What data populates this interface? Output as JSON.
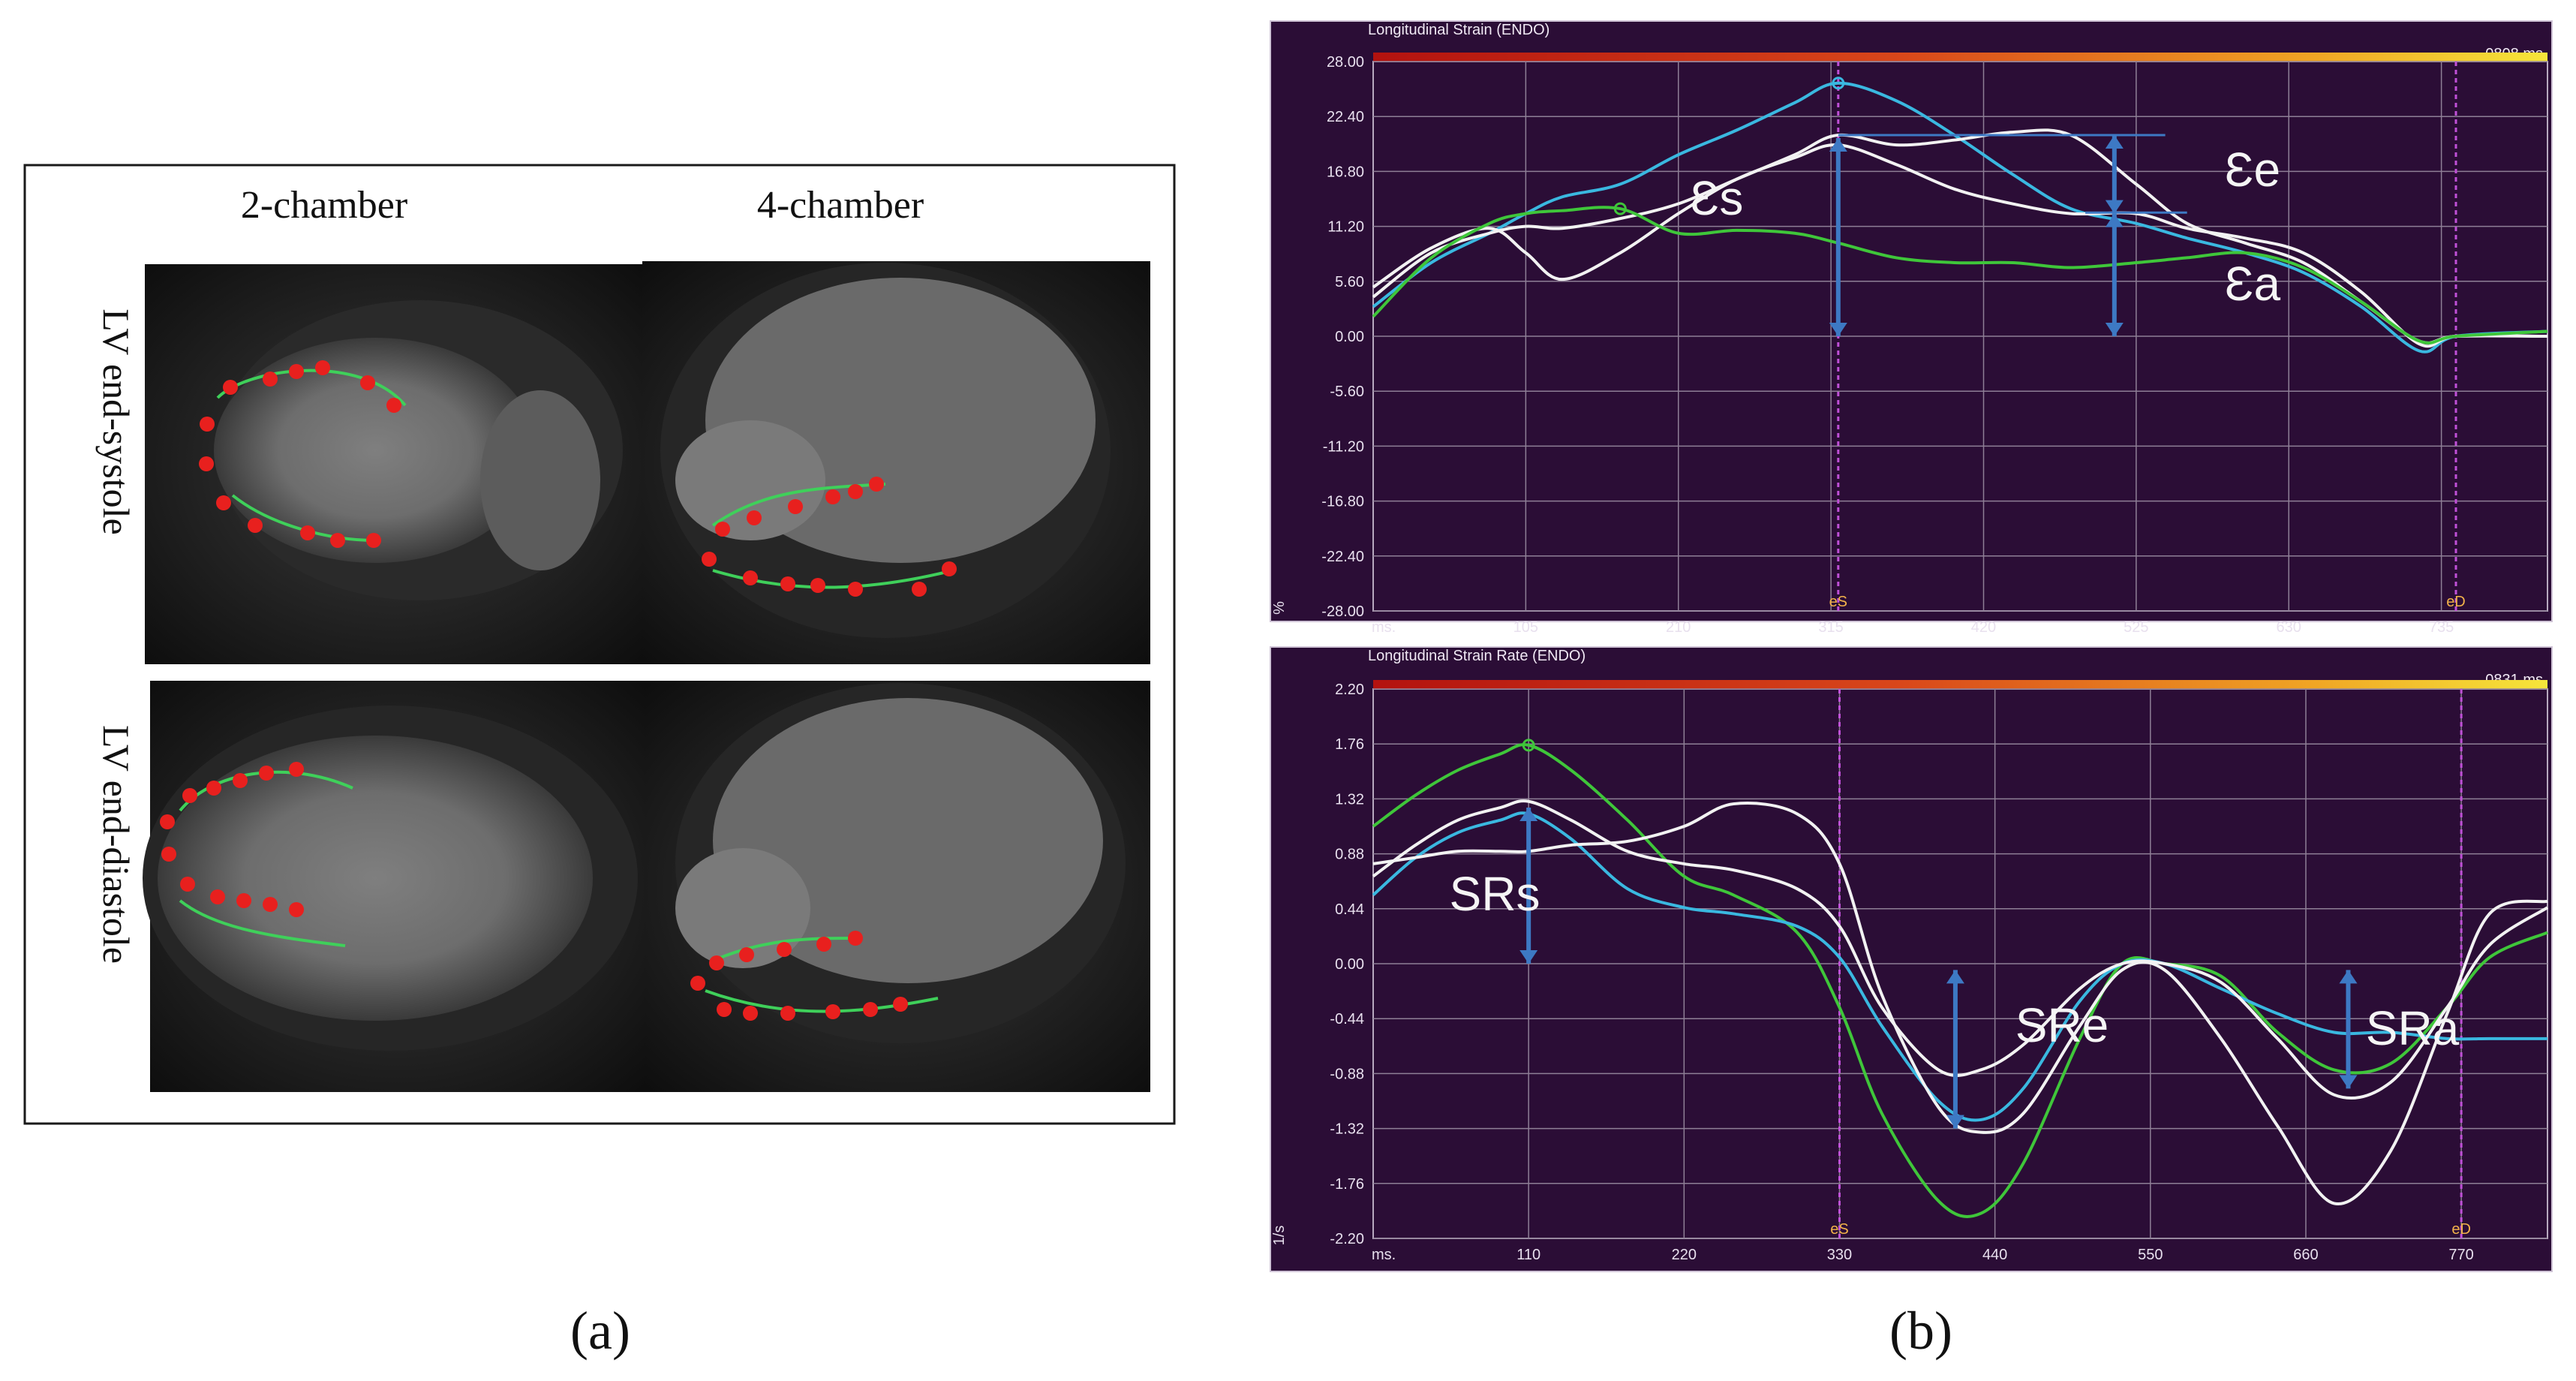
{
  "panel_a": {
    "columns": [
      "2-chamber",
      "4-chamber"
    ],
    "rows": [
      "LV end-systole",
      "LV end-diastole"
    ],
    "caption": "(a)"
  },
  "panel_b_caption": "(b)",
  "colors": {
    "plot_bg": "#2b0d36",
    "grid": "#8e7f96",
    "white": "#f2f2f2",
    "cyan": "#3ab8e0",
    "green": "#3fc63a",
    "arrow": "#3d79c4",
    "marker_line": "#c050d8"
  },
  "chart_data": [
    {
      "type": "line",
      "title": "Longitudinal Strain (ENDO)",
      "time_label": "0808 ms",
      "ylabel": "%",
      "xlabel": "ms.",
      "ylim": [
        -28.0,
        28.0
      ],
      "xlim": [
        0,
        808
      ],
      "yticks": [
        "28.00",
        "22.40",
        "16.80",
        "11.20",
        "5.60",
        "0.00",
        "-5.60",
        "-11.20",
        "-16.80",
        "-22.40",
        "-28.00"
      ],
      "xticks": [
        "105",
        "210",
        "315",
        "420",
        "525",
        "630",
        "735"
      ],
      "event_markers": [
        {
          "label": "eS",
          "x": 320
        },
        {
          "label": "eD",
          "x": 745
        }
      ],
      "x": [
        0,
        40,
        80,
        105,
        130,
        170,
        210,
        250,
        290,
        320,
        360,
        400,
        440,
        480,
        525,
        560,
        600,
        640,
        680,
        720,
        745,
        808
      ],
      "series": [
        {
          "name": "cyan",
          "color": "cyan",
          "values": [
            3.0,
            7.5,
            10.5,
            12.5,
            14.2,
            15.5,
            18.5,
            21.0,
            23.8,
            25.8,
            24.0,
            20.5,
            16.5,
            13.0,
            11.5,
            10.0,
            8.5,
            6.5,
            3.0,
            -1.5,
            0.0,
            0.5
          ]
        },
        {
          "name": "white-1",
          "color": "white",
          "values": [
            4.0,
            8.5,
            10.5,
            11.2,
            11.0,
            12.0,
            13.5,
            16.0,
            18.5,
            20.5,
            19.5,
            20.0,
            20.8,
            20.5,
            15.5,
            11.5,
            9.5,
            7.5,
            3.5,
            -0.5,
            0.0,
            0.0
          ]
        },
        {
          "name": "white-2",
          "color": "white",
          "values": [
            5.0,
            9.0,
            11.0,
            8.5,
            5.8,
            8.5,
            12.5,
            16.0,
            18.2,
            19.5,
            17.5,
            15.0,
            13.5,
            12.5,
            12.5,
            11.0,
            10.0,
            8.5,
            4.5,
            -0.8,
            0.0,
            0.0
          ]
        },
        {
          "name": "green",
          "color": "green",
          "values": [
            2.0,
            8.0,
            11.5,
            12.5,
            12.8,
            13.0,
            10.5,
            10.8,
            10.5,
            9.5,
            8.0,
            7.5,
            7.5,
            7.0,
            7.5,
            8.0,
            8.5,
            7.0,
            3.5,
            -0.5,
            0.0,
            0.5
          ]
        }
      ],
      "annotations": [
        "Ɛs",
        "Ɛe",
        "Ɛa"
      ]
    },
    {
      "type": "line",
      "title": "Longitudinal Strain Rate (ENDO)",
      "time_label": "0831 ms",
      "ylabel": "1/s",
      "xlabel": "ms.",
      "ylim": [
        -2.2,
        2.2
      ],
      "xlim": [
        0,
        831
      ],
      "yticks": [
        "2.20",
        "1.76",
        "1.32",
        "0.88",
        "0.44",
        "0.00",
        "-0.44",
        "-0.88",
        "-1.32",
        "-1.76",
        "-2.20"
      ],
      "xticks": [
        "110",
        "220",
        "330",
        "440",
        "550",
        "660",
        "770"
      ],
      "event_markers": [
        {
          "label": "eS",
          "x": 330
        },
        {
          "label": "eD",
          "x": 770
        }
      ],
      "x": [
        0,
        30,
        60,
        90,
        110,
        140,
        180,
        220,
        255,
        300,
        330,
        360,
        400,
        430,
        460,
        500,
        530,
        560,
        600,
        640,
        680,
        720,
        760,
        790,
        831
      ],
      "series": [
        {
          "name": "green",
          "color": "green",
          "values": [
            1.1,
            1.35,
            1.55,
            1.68,
            1.75,
            1.55,
            1.15,
            0.7,
            0.55,
            0.25,
            -0.35,
            -1.2,
            -1.9,
            -2.0,
            -1.6,
            -0.6,
            0.0,
            0.0,
            -0.1,
            -0.55,
            -0.85,
            -0.8,
            -0.35,
            0.05,
            0.25
          ]
        },
        {
          "name": "cyan",
          "color": "cyan",
          "values": [
            0.55,
            0.85,
            1.05,
            1.15,
            1.2,
            1.0,
            0.6,
            0.45,
            0.4,
            0.3,
            0.05,
            -0.5,
            -1.1,
            -1.25,
            -1.0,
            -0.3,
            0.0,
            0.0,
            -0.2,
            -0.4,
            -0.55,
            -0.55,
            -0.6,
            -0.6,
            -0.6
          ]
        },
        {
          "name": "white-1",
          "color": "white",
          "values": [
            0.7,
            0.95,
            1.15,
            1.25,
            1.3,
            1.15,
            0.9,
            0.8,
            0.75,
            0.6,
            0.3,
            -0.35,
            -0.85,
            -0.85,
            -0.65,
            -0.2,
            0.0,
            0.0,
            -0.15,
            -0.6,
            -1.05,
            -0.95,
            -0.35,
            0.15,
            0.45
          ]
        },
        {
          "name": "white-2",
          "color": "white",
          "values": [
            0.8,
            0.85,
            0.9,
            0.9,
            0.9,
            0.95,
            0.98,
            1.1,
            1.28,
            1.2,
            0.8,
            -0.25,
            -1.15,
            -1.35,
            -1.2,
            -0.5,
            -0.05,
            -0.05,
            -0.6,
            -1.3,
            -1.92,
            -1.5,
            -0.4,
            0.4,
            0.5
          ]
        }
      ],
      "annotations": [
        "SRs",
        "SRe",
        "SRa"
      ]
    }
  ]
}
